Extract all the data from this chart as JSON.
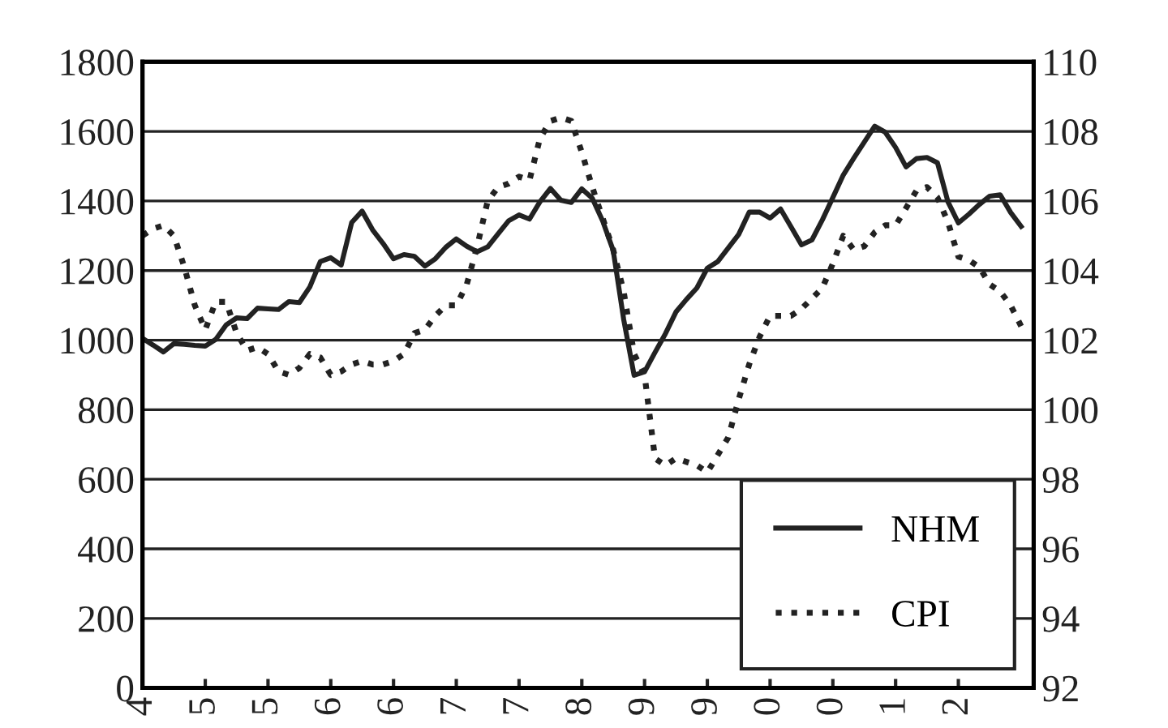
{
  "chart_data": {
    "type": "line",
    "categories": [
      "4",
      null,
      null,
      null,
      null,
      null,
      "5",
      null,
      null,
      null,
      null,
      null,
      "5",
      null,
      null,
      null,
      null,
      null,
      "6",
      null,
      null,
      null,
      null,
      null,
      "6",
      null,
      null,
      null,
      null,
      null,
      "7",
      null,
      null,
      null,
      null,
      null,
      "7",
      null,
      null,
      null,
      null,
      null,
      "8",
      null,
      null,
      null,
      null,
      null,
      "9",
      null,
      null,
      null,
      null,
      null,
      "9",
      null,
      null,
      null,
      null,
      null,
      "0",
      null,
      null,
      null,
      null,
      null,
      "0",
      null,
      null,
      null,
      null,
      null,
      "1",
      null,
      null,
      null,
      null,
      null,
      "2",
      null,
      null,
      null,
      null,
      null,
      null
    ],
    "ylim": [
      0,
      1800
    ],
    "yticks": [
      0,
      200,
      400,
      600,
      800,
      1000,
      1200,
      1400,
      1600,
      1800
    ],
    "y2lim": [
      92,
      110
    ],
    "y2ticks": [
      92,
      94,
      96,
      98,
      100,
      102,
      104,
      106,
      108,
      110
    ],
    "grid": "y",
    "legend": "bottom right",
    "marker": "none",
    "series": [
      {
        "name": "NHM",
        "color": "#222222",
        "line_style": "solid",
        "values": [
          1005,
          986,
          966,
          990,
          988,
          985,
          983,
          1002,
          1044,
          1064,
          1062,
          1092,
          1090,
          1088,
          1111,
          1108,
          1153,
          1226,
          1237,
          1216,
          1338,
          1371,
          1317,
          1278,
          1234,
          1246,
          1241,
          1213,
          1234,
          1267,
          1291,
          1270,
          1254,
          1268,
          1306,
          1343,
          1360,
          1348,
          1398,
          1436,
          1402,
          1396,
          1435,
          1408,
          1342,
          1258,
          1060,
          899,
          909,
          965,
          1019,
          1081,
          1117,
          1150,
          1207,
          1226,
          1265,
          1304,
          1368,
          1368,
          1351,
          1377,
          1326,
          1274,
          1288,
          1346,
          1410,
          1475,
          1523,
          1569,
          1615,
          1598,
          1554,
          1498,
          1522,
          1525,
          1510,
          1398,
          1337,
          1362,
          1390,
          1414,
          1418,
          1367,
          1327
        ]
      },
      {
        "name": "CPI",
        "color": "#222222",
        "line_style": "dotted",
        "axis": "y2",
        "values": [
          105.0,
          105.2,
          105.3,
          105.0,
          104.1,
          103.0,
          102.3,
          103.1,
          103.1,
          102.2,
          101.7,
          101.8,
          101.6,
          101.1,
          101.0,
          101.2,
          101.6,
          101.5,
          101.0,
          101.1,
          101.3,
          101.4,
          101.3,
          101.3,
          101.4,
          101.6,
          102.2,
          102.3,
          102.7,
          103.0,
          103.0,
          103.6,
          104.7,
          106.0,
          106.4,
          106.5,
          106.7,
          106.6,
          107.8,
          108.3,
          108.4,
          108.3,
          107.4,
          106.4,
          105.5,
          104.6,
          103.4,
          101.6,
          101.0,
          98.6,
          98.4,
          98.6,
          98.5,
          98.4,
          98.2,
          98.7,
          99.2,
          100.3,
          101.3,
          102.1,
          102.7,
          102.7,
          102.7,
          102.9,
          103.2,
          103.5,
          104.2,
          105.0,
          104.6,
          104.7,
          105.1,
          105.3,
          105.3,
          105.8,
          106.3,
          106.4,
          106.1,
          105.4,
          104.4,
          104.3,
          104.1,
          103.6,
          103.4,
          103.0,
          102.4
        ]
      }
    ]
  }
}
